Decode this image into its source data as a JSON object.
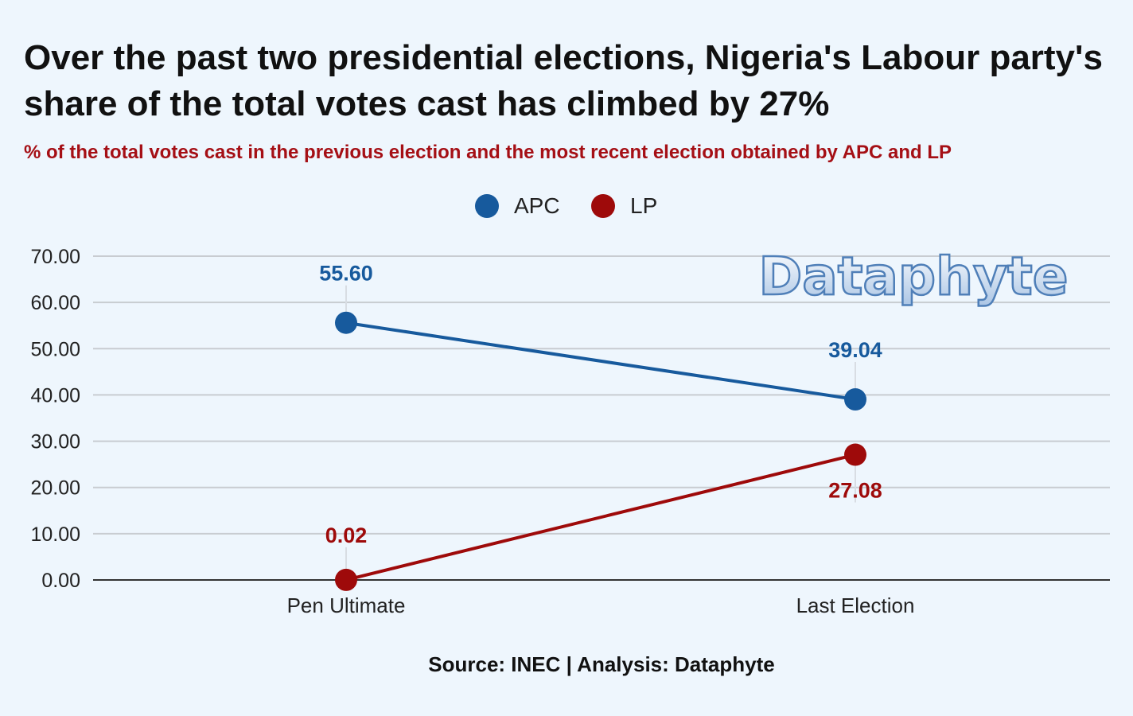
{
  "title": "Over the past two presidential elections, Nigeria's Labour party's share of the total votes cast has climbed by 27%",
  "subtitle": "% of the total votes cast in the previous election and the most recent election obtained by APC and LP",
  "watermark": "Dataphyte",
  "source": "Source: INEC | Analysis: Dataphyte",
  "colors": {
    "apc": "#175a9d",
    "lp": "#9e0a0a",
    "grid": "#c8ccd1",
    "axis": "#333333"
  },
  "chart_data": {
    "type": "line",
    "categories": [
      "Pen Ultimate",
      "Last Election"
    ],
    "series": [
      {
        "name": "APC",
        "values": [
          55.6,
          39.04
        ],
        "labels": [
          "55.60",
          "39.04"
        ]
      },
      {
        "name": "LP",
        "values": [
          0.02,
          27.08
        ],
        "labels": [
          "0.02",
          "27.08"
        ]
      }
    ],
    "ylim": [
      0,
      70
    ],
    "yticks": [
      "0.00",
      "10.00",
      "20.00",
      "30.00",
      "40.00",
      "50.00",
      "60.00",
      "70.00"
    ],
    "grid": true,
    "legend": "top-center"
  }
}
